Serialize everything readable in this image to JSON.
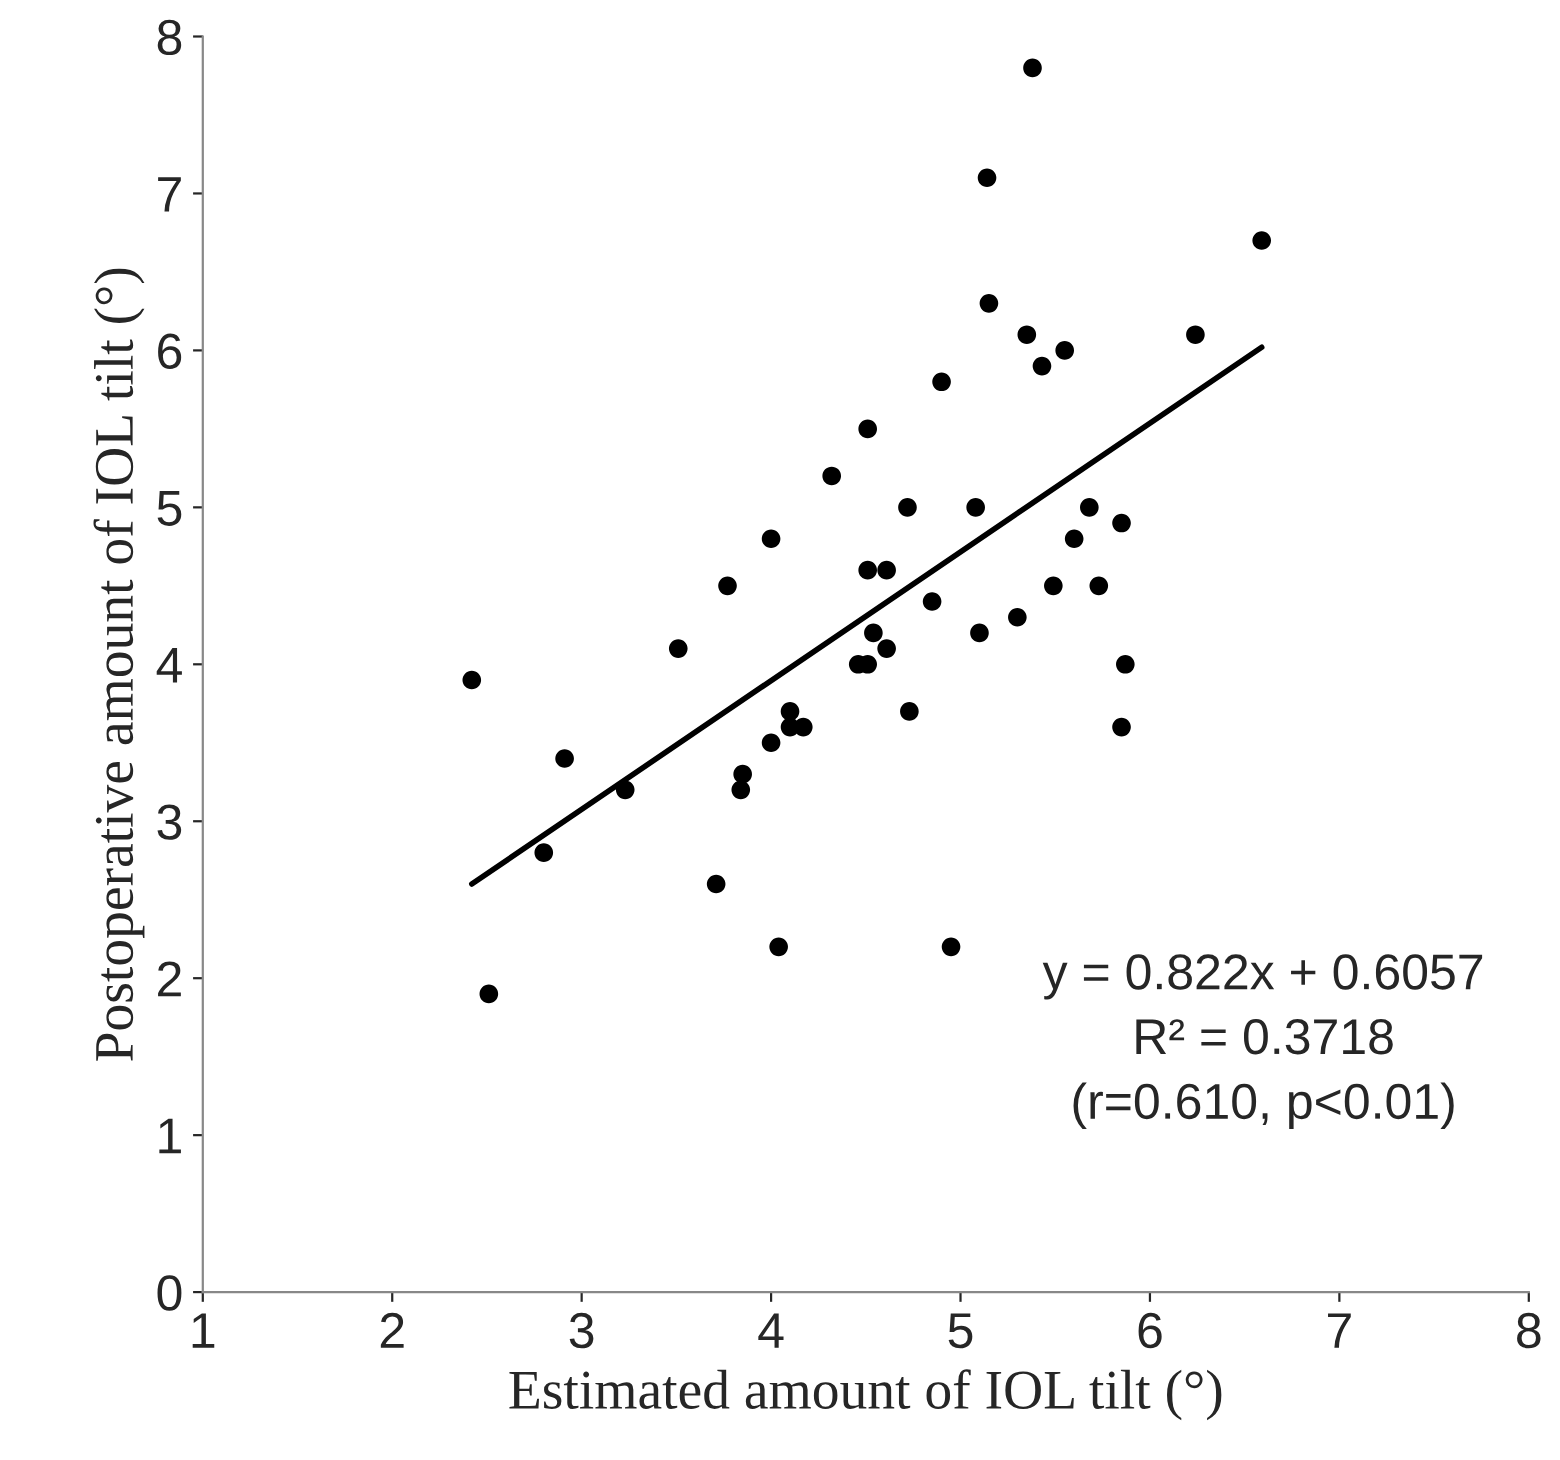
{
  "chart_data": {
    "type": "scatter",
    "xlabel": "Estimated amount of IOL tilt (°)",
    "ylabel": "Postoperative amount of IOL tilt (°)",
    "series": [
      {
        "color": "#000000",
        "marker": "circle",
        "x": [
          2.42,
          2.51,
          2.8,
          2.91,
          3.23,
          3.51,
          3.71,
          3.77,
          3.84,
          3.85,
          4.0,
          4.0,
          4.04,
          4.1,
          4.1,
          4.17,
          4.32,
          4.46,
          4.51,
          4.51,
          4.51,
          4.61,
          4.54,
          4.61,
          4.72,
          4.73,
          4.85,
          4.9,
          4.95,
          5.08,
          5.1,
          5.14,
          5.15,
          5.38,
          6.59,
          5.35,
          5.43,
          5.55,
          6.24,
          5.68,
          5.85,
          5.6,
          5.49,
          5.73,
          5.3,
          5.87,
          5.85
        ],
        "values": [
          3.9,
          1.9,
          2.8,
          3.4,
          3.2,
          4.1,
          2.6,
          4.5,
          3.2,
          3.3,
          4.8,
          3.5,
          2.2,
          3.7,
          3.6,
          3.6,
          5.2,
          4.0,
          4.0,
          5.5,
          4.6,
          4.6,
          4.2,
          4.1,
          5.0,
          3.7,
          4.4,
          5.8,
          2.2,
          5.0,
          4.2,
          7.1,
          6.3,
          7.8,
          6.7,
          6.1,
          5.9,
          6.0,
          6.1,
          5.0,
          4.9,
          4.8,
          4.5,
          4.5,
          4.3,
          4.0,
          3.6
        ]
      },
      {
        "type": "line",
        "color": "#000000",
        "line_style": "solid",
        "x": [
          2.42,
          6.59
        ],
        "values": [
          2.6,
          6.02
        ]
      }
    ],
    "xlim": [
      1,
      8
    ],
    "xticks": [
      1,
      2,
      3,
      4,
      5,
      6,
      7,
      8
    ],
    "ylim": [
      0,
      8
    ],
    "yticks": [
      0,
      1,
      2,
      3,
      4,
      5,
      6,
      7,
      8
    ],
    "grid": false,
    "annotations": [
      {
        "text": "y = 0.822x + 0.6057\nR² = 0.3718\n(r=0.610, p<0.01)"
      }
    ]
  }
}
